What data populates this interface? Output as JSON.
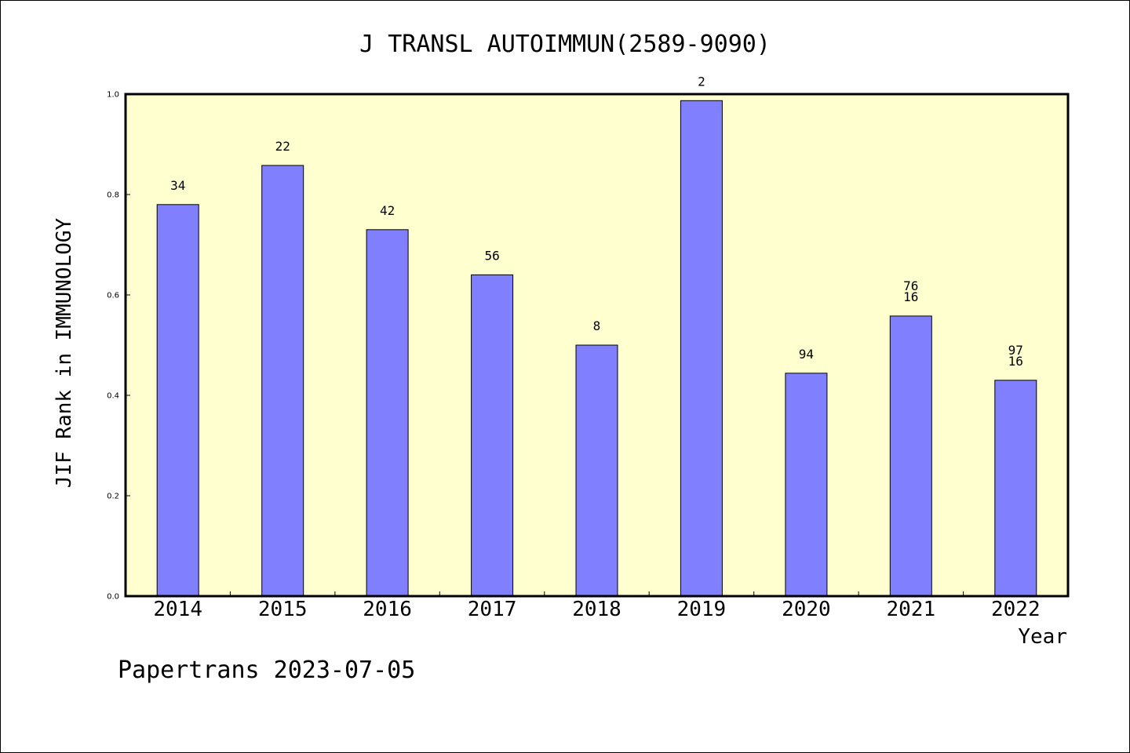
{
  "chart_data": {
    "type": "bar",
    "title": "J TRANSL AUTOIMMUN(2589-9090)",
    "xlabel": "Year",
    "ylabel": "JIF Rank in IMMUNOLOGY",
    "ylim": [
      0,
      1.0
    ],
    "yticks": [
      "0.0",
      "0.2",
      "0.4",
      "0.6",
      "0.8",
      "1.0"
    ],
    "categories": [
      "2014",
      "2015",
      "2016",
      "2017",
      "2018",
      "2019",
      "2020",
      "2021",
      "2022"
    ],
    "values": [
      0.78,
      0.858,
      0.73,
      0.64,
      0.5,
      0.987,
      0.444,
      0.558,
      0.43
    ],
    "labels": [
      "34",
      "22",
      "42",
      "56",
      "8",
      "2",
      "94",
      "76\n16",
      "97\n16"
    ],
    "plot_background": "#ffffd0",
    "bar_color": "#8080ff",
    "grid": false,
    "legend": "none"
  },
  "footer": "Papertrans 2023-07-05"
}
